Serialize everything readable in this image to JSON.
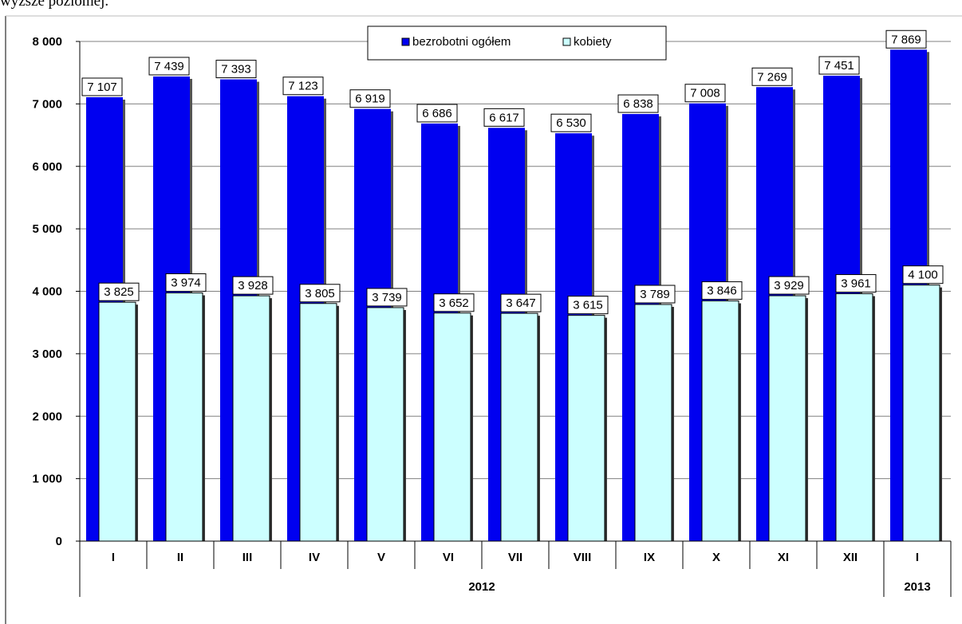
{
  "header": {
    "text": "wyższe poziomej."
  },
  "colors": {
    "total": "#0000f0",
    "women": "#ccffff",
    "grid": "#808080",
    "label_bg": "#ffffff"
  },
  "chart_data": {
    "type": "bar",
    "categories": [
      "I",
      "II",
      "III",
      "IV",
      "V",
      "VI",
      "VII",
      "VIII",
      "IX",
      "X",
      "XI",
      "XII",
      "I"
    ],
    "year_groups": [
      {
        "label": "2012",
        "count": 12
      },
      {
        "label": "2013",
        "count": 1
      }
    ],
    "series": [
      {
        "name": "bezrobotni ogółem",
        "values": [
          7107,
          7439,
          7393,
          7123,
          6919,
          6686,
          6617,
          6530,
          6838,
          7008,
          7269,
          7451,
          7869
        ],
        "labels": [
          "7 107",
          "7 439",
          "7 393",
          "7 123",
          "6 919",
          "6 686",
          "6 617",
          "6 530",
          "6 838",
          "7 008",
          "7 269",
          "7 451",
          "7 869"
        ]
      },
      {
        "name": "kobiety",
        "values": [
          3825,
          3974,
          3928,
          3805,
          3739,
          3652,
          3647,
          3615,
          3789,
          3846,
          3929,
          3961,
          4100
        ],
        "labels": [
          "3 825",
          "3 974",
          "3 928",
          "3 805",
          "3 739",
          "3 652",
          "3 647",
          "3 615",
          "3 789",
          "3 846",
          "3 929",
          "3 961",
          "4 100"
        ]
      }
    ],
    "ylim": [
      0,
      8000
    ],
    "yticks": [
      0,
      1000,
      2000,
      3000,
      4000,
      5000,
      6000,
      7000,
      8000
    ],
    "ytick_labels": [
      "0",
      "1 000",
      "2 000",
      "3 000",
      "4 000",
      "5 000",
      "6 000",
      "7 000",
      "8 000"
    ],
    "grid": true,
    "legend_position": "top-center"
  }
}
